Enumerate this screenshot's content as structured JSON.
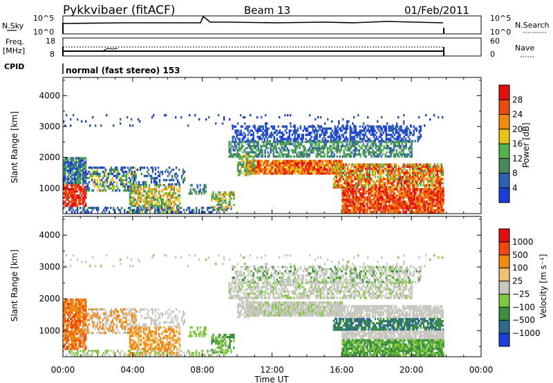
{
  "header": {
    "station": "Pykkvibaer (fitACF)",
    "beam": "Beam 13",
    "date": "01/Feb/2011"
  },
  "nsky_panel": {
    "left_label": "N.Sky",
    "left_ticks": [
      "10^5",
      "10^0"
    ],
    "right_ticks": [
      "10^5",
      "10^0"
    ],
    "right_label": "N.Search"
  },
  "freq_panel": {
    "label_1": "Freq.",
    "label_2": "[MHz]",
    "left_ticks": [
      "18",
      "8"
    ],
    "right_ticks": [
      "60",
      "0"
    ],
    "right_label": "Nave"
  },
  "cpid_panel": {
    "label": "CPID",
    "value": "normal (fast stereo) 153"
  },
  "colors": {
    "power": [
      "#1a3dd6",
      "#2f5fb0",
      "#4a8a5a",
      "#52b34a",
      "#e8c21a",
      "#f08a12",
      "#ee4a10",
      "#e01010"
    ],
    "velocity": [
      "#e01010",
      "#ee4a10",
      "#f08a12",
      "#f0c070",
      "#c8c8c0",
      "#7fc840",
      "#3c8f3c",
      "#2e6a8a",
      "#1a3dd6"
    ],
    "groundscatter": "#c8c8c0"
  },
  "chart_data": [
    {
      "type": "heatmap",
      "name": "power",
      "xlabel": "",
      "ylabel": "Slant Range [km]",
      "xlim": [
        0,
        24
      ],
      "ylim": [
        180,
        4590
      ],
      "xticks": [
        "00:00",
        "04:00",
        "08:00",
        "12:00",
        "16:00",
        "20:00",
        "00:00"
      ],
      "yticks": [
        1000,
        2000,
        3000,
        4000
      ],
      "colorbar": {
        "label": "Power [dB]",
        "ticks": [
          "4",
          "8",
          "12",
          "16",
          "20",
          "24",
          "28"
        ]
      }
    },
    {
      "type": "heatmap",
      "name": "velocity",
      "xlabel": "Time UT",
      "ylabel": "Slant Range [km]",
      "xlim": [
        0,
        24
      ],
      "ylim": [
        180,
        4590
      ],
      "xticks": [
        "00:00",
        "04:00",
        "08:00",
        "12:00",
        "16:00",
        "20:00",
        "00:00"
      ],
      "yticks": [
        1000,
        2000,
        3000,
        4000
      ],
      "colorbar": {
        "label": "Velocity [m s⁻¹]",
        "ticks": [
          "1000",
          "500",
          "100",
          "25",
          "−25",
          "−100",
          "−500",
          "−1000"
        ]
      }
    }
  ]
}
